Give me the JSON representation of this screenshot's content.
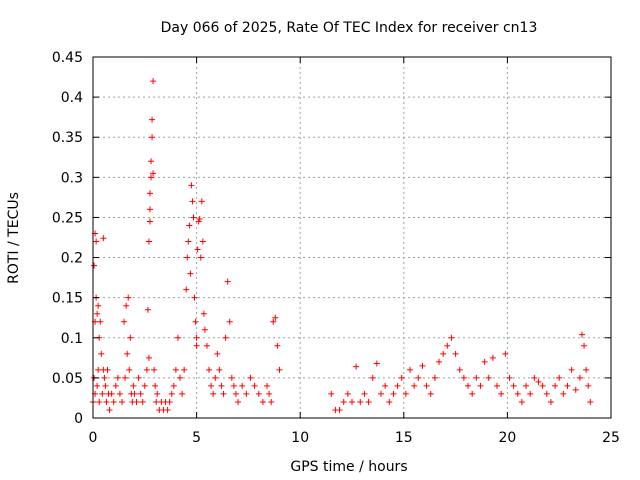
{
  "chart_data": {
    "type": "scatter",
    "title": "Day 066 of 2025, Rate Of TEC Index for receiver cn13",
    "xlabel": "GPS time / hours",
    "ylabel": "ROTI / TECUs",
    "xlim": [
      0,
      25
    ],
    "ylim": [
      0,
      0.45
    ],
    "xticks": [
      0,
      5,
      10,
      15,
      20,
      25
    ],
    "yticks": [
      0,
      0.05,
      0.1,
      0.15,
      0.2,
      0.25,
      0.3,
      0.35,
      0.4,
      0.45
    ],
    "ytick_labels": [
      "0",
      "0.05",
      "0.1",
      "0.15",
      "0.2",
      "0.25",
      "0.3",
      "0.35",
      "0.4",
      "0.45"
    ],
    "grid": true,
    "marker": "+",
    "color": "#ff0000",
    "series": [
      {
        "name": "ROTI",
        "x": [
          0.0,
          0.05,
          0.05,
          0.1,
          0.1,
          0.1,
          0.15,
          0.15,
          0.2,
          0.2,
          0.25,
          0.25,
          0.3,
          0.3,
          0.35,
          0.4,
          0.45,
          0.5,
          0.5,
          0.55,
          0.6,
          0.65,
          0.7,
          0.75,
          0.8,
          0.9,
          1.0,
          1.1,
          1.2,
          1.3,
          1.4,
          1.5,
          1.55,
          1.6,
          1.65,
          1.7,
          1.75,
          1.8,
          1.85,
          1.9,
          1.95,
          2.0,
          2.1,
          2.2,
          2.3,
          2.4,
          2.5,
          2.6,
          2.65,
          2.7,
          2.7,
          2.75,
          2.75,
          2.75,
          2.8,
          2.8,
          2.85,
          2.85,
          2.9,
          2.9,
          2.95,
          3.0,
          3.05,
          3.1,
          3.2,
          3.3,
          3.4,
          3.5,
          3.6,
          3.7,
          3.8,
          3.9,
          4.0,
          4.1,
          4.2,
          4.3,
          4.4,
          4.5,
          4.55,
          4.6,
          4.65,
          4.7,
          4.75,
          4.8,
          4.85,
          4.9,
          4.95,
          5.0,
          5.0,
          5.05,
          5.1,
          5.15,
          5.2,
          5.25,
          5.3,
          5.35,
          5.4,
          5.5,
          5.6,
          5.7,
          5.8,
          5.9,
          6.0,
          6.1,
          6.2,
          6.3,
          6.4,
          6.5,
          6.6,
          6.7,
          6.8,
          6.9,
          7.0,
          7.2,
          7.4,
          7.6,
          7.8,
          8.0,
          8.2,
          8.4,
          8.5,
          8.6,
          8.7,
          8.8,
          8.9,
          9.0,
          11.5,
          11.7,
          11.9,
          12.1,
          12.3,
          12.5,
          12.7,
          12.9,
          13.1,
          13.3,
          13.5,
          13.7,
          13.9,
          14.1,
          14.3,
          14.5,
          14.7,
          14.9,
          15.1,
          15.3,
          15.5,
          15.7,
          15.9,
          16.1,
          16.3,
          16.5,
          16.7,
          16.9,
          17.1,
          17.3,
          17.5,
          17.7,
          17.9,
          18.1,
          18.3,
          18.5,
          18.7,
          18.9,
          19.1,
          19.3,
          19.5,
          19.7,
          19.9,
          20.1,
          20.3,
          20.5,
          20.7,
          20.9,
          21.1,
          21.3,
          21.5,
          21.7,
          21.9,
          22.1,
          22.3,
          22.5,
          22.7,
          22.9,
          23.1,
          23.3,
          23.5,
          23.6,
          23.7,
          23.8,
          23.9,
          24.0
        ],
        "y": [
          0.02,
          0.19,
          0.05,
          0.23,
          0.12,
          0.03,
          0.22,
          0.15,
          0.13,
          0.04,
          0.14,
          0.06,
          0.1,
          0.02,
          0.12,
          0.08,
          0.03,
          0.224,
          0.06,
          0.05,
          0.04,
          0.02,
          0.06,
          0.03,
          0.01,
          0.03,
          0.02,
          0.04,
          0.05,
          0.03,
          0.02,
          0.12,
          0.05,
          0.14,
          0.08,
          0.15,
          0.06,
          0.1,
          0.03,
          0.02,
          0.04,
          0.03,
          0.02,
          0.05,
          0.03,
          0.02,
          0.04,
          0.06,
          0.135,
          0.22,
          0.075,
          0.245,
          0.26,
          0.28,
          0.3,
          0.32,
          0.35,
          0.372,
          0.42,
          0.305,
          0.06,
          0.04,
          0.02,
          0.03,
          0.01,
          0.02,
          0.01,
          0.02,
          0.01,
          0.02,
          0.03,
          0.04,
          0.06,
          0.1,
          0.05,
          0.03,
          0.06,
          0.16,
          0.2,
          0.22,
          0.24,
          0.18,
          0.29,
          0.27,
          0.25,
          0.15,
          0.12,
          0.1,
          0.09,
          0.21,
          0.245,
          0.248,
          0.2,
          0.27,
          0.22,
          0.13,
          0.11,
          0.09,
          0.06,
          0.04,
          0.03,
          0.05,
          0.08,
          0.06,
          0.04,
          0.03,
          0.1,
          0.17,
          0.12,
          0.05,
          0.04,
          0.03,
          0.02,
          0.04,
          0.03,
          0.05,
          0.04,
          0.03,
          0.02,
          0.04,
          0.03,
          0.02,
          0.12,
          0.125,
          0.09,
          0.06,
          0.03,
          0.01,
          0.01,
          0.02,
          0.03,
          0.02,
          0.064,
          0.02,
          0.03,
          0.02,
          0.05,
          0.068,
          0.03,
          0.04,
          0.02,
          0.03,
          0.04,
          0.05,
          0.03,
          0.06,
          0.04,
          0.05,
          0.065,
          0.04,
          0.03,
          0.05,
          0.07,
          0.08,
          0.09,
          0.1,
          0.08,
          0.06,
          0.05,
          0.04,
          0.03,
          0.05,
          0.04,
          0.07,
          0.05,
          0.075,
          0.04,
          0.03,
          0.08,
          0.05,
          0.04,
          0.03,
          0.02,
          0.04,
          0.03,
          0.05,
          0.045,
          0.04,
          0.03,
          0.02,
          0.04,
          0.05,
          0.03,
          0.04,
          0.06,
          0.035,
          0.05,
          0.104,
          0.09,
          0.06,
          0.04,
          0.02
        ]
      }
    ]
  }
}
